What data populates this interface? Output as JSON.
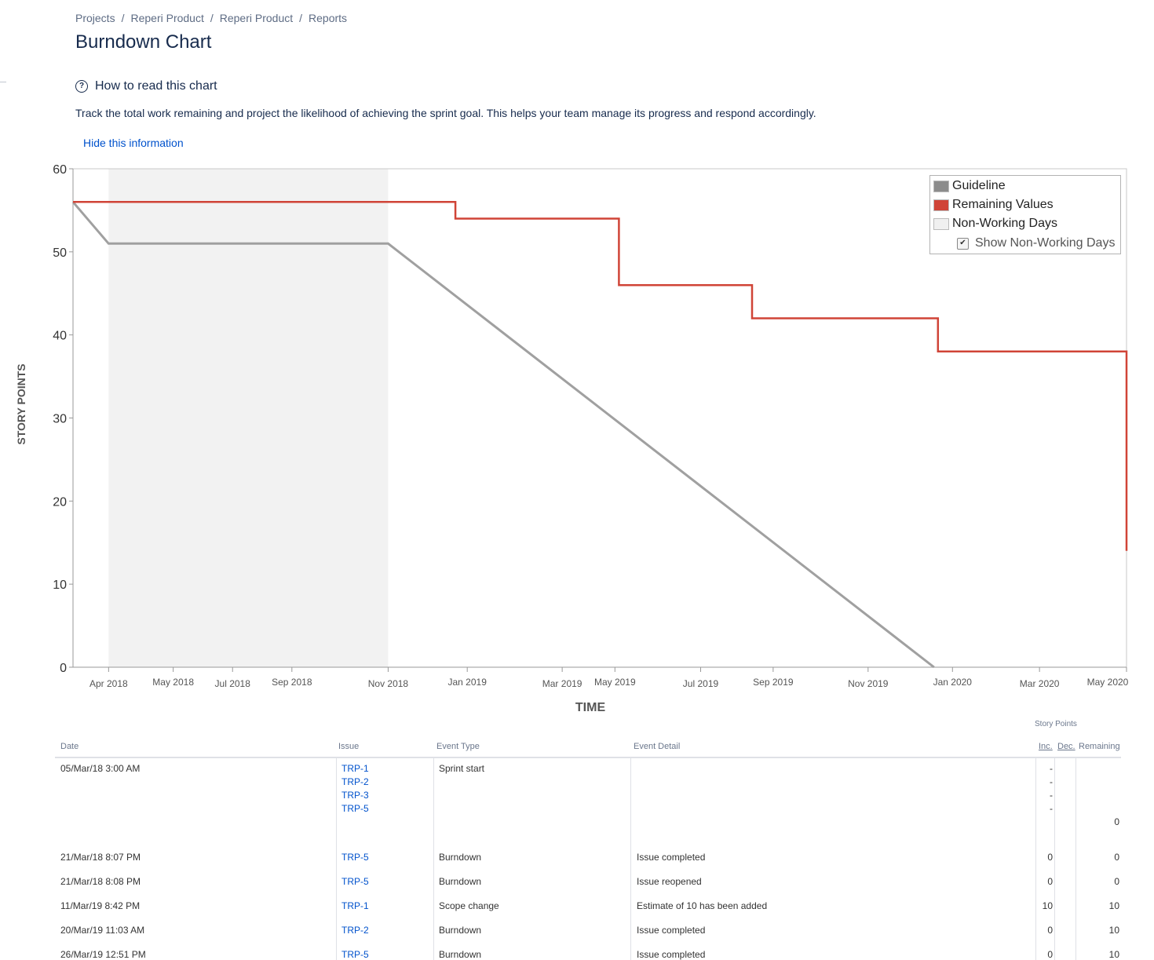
{
  "breadcrumb": [
    "Projects",
    "Reperi Product",
    "Reperi Product",
    "Reports"
  ],
  "page_title": "Burndown Chart",
  "help": {
    "title": "How to read this chart",
    "description": "Track the total work remaining and project the likelihood of achieving the sprint goal. This helps your team manage its progress and respond accordingly.",
    "hide_label": "Hide this information"
  },
  "chart_data": {
    "type": "line",
    "title": "",
    "xlabel": "TIME",
    "ylabel": "STORY POINTS",
    "ylim": [
      0,
      60
    ],
    "yticks": [
      0,
      10,
      20,
      30,
      40,
      50,
      60
    ],
    "xlim": [
      "2018-03-05",
      "2020-05-12"
    ],
    "xticks": [
      {
        "label": "Apr 2018",
        "date": "2018-04-01"
      },
      {
        "label": "May 2018",
        "date": "2018-05-20"
      },
      {
        "label": "Jul 2018",
        "date": "2018-07-04"
      },
      {
        "label": "Sep 2018",
        "date": "2018-08-18"
      },
      {
        "label": "Nov 2018",
        "date": "2018-10-30"
      },
      {
        "label": "Jan 2019",
        "date": "2018-12-29"
      },
      {
        "label": "Mar 2019",
        "date": "2019-03-11"
      },
      {
        "label": "May 2019",
        "date": "2019-04-20"
      },
      {
        "label": "Jul 2019",
        "date": "2019-06-24"
      },
      {
        "label": "Sep 2019",
        "date": "2019-08-18"
      },
      {
        "label": "Nov 2019",
        "date": "2019-10-29"
      },
      {
        "label": "Jan 2020",
        "date": "2020-01-01"
      },
      {
        "label": "Mar 2020",
        "date": "2020-03-07"
      },
      {
        "label": "May 2020",
        "date": "2020-05-12"
      }
    ],
    "non_working_periods": [
      [
        "2018-04-01",
        "2018-10-30"
      ]
    ],
    "series": [
      {
        "name": "Guideline",
        "color": "#a0a0a0",
        "step": false,
        "points": [
          [
            "2018-03-05",
            56
          ],
          [
            "2018-04-01",
            51
          ],
          [
            "2018-10-30",
            51
          ],
          [
            "2019-12-18",
            0
          ]
        ]
      },
      {
        "name": "Remaining Values",
        "color": "#d04437",
        "step": true,
        "points": [
          [
            "2018-03-05",
            56
          ],
          [
            "2018-12-20",
            54
          ],
          [
            "2019-04-23",
            46
          ],
          [
            "2019-08-02",
            42
          ],
          [
            "2019-12-21",
            38
          ],
          [
            "2020-05-12",
            30
          ],
          [
            "2020-05-12",
            14
          ]
        ]
      }
    ],
    "legend": {
      "position": "top-right",
      "items": [
        {
          "label": "Guideline",
          "color": "#8c8c8c"
        },
        {
          "label": "Remaining Values",
          "color": "#d04437"
        },
        {
          "label": "Non-Working Days",
          "color": "#f0f0f0"
        }
      ],
      "checkbox_label": "Show Non-Working Days",
      "checkbox_checked": true
    }
  },
  "table": {
    "group_header": "Story Points",
    "columns": [
      "Date",
      "Issue",
      "Event Type",
      "Event Detail",
      "Inc.",
      "Dec.",
      "Remaining"
    ],
    "rows": [
      {
        "date": "05/Mar/18 3:00 AM",
        "issues": [
          "TRP-1",
          "TRP-2",
          "TRP-3",
          "TRP-5"
        ],
        "event_type": "Sprint start",
        "detail": "",
        "inc": [
          "-",
          "-",
          "-",
          "-"
        ],
        "dec": "",
        "remaining": "0"
      },
      {
        "date": "21/Mar/18 8:07 PM",
        "issues": [
          "TRP-5"
        ],
        "event_type": "Burndown",
        "detail": "Issue completed",
        "inc": [
          "0"
        ],
        "dec": "",
        "remaining": "0"
      },
      {
        "date": "21/Mar/18 8:08 PM",
        "issues": [
          "TRP-5"
        ],
        "event_type": "Burndown",
        "detail": "Issue reopened",
        "inc": [
          "0"
        ],
        "dec": "",
        "remaining": "0"
      },
      {
        "date": "11/Mar/19 8:42 PM",
        "issues": [
          "TRP-1"
        ],
        "event_type": "Scope change",
        "detail": "Estimate of 10 has been added",
        "inc": [
          "10"
        ],
        "dec": "",
        "remaining": "10"
      },
      {
        "date": "20/Mar/19 11:03 AM",
        "issues": [
          "TRP-2"
        ],
        "event_type": "Burndown",
        "detail": "Issue completed",
        "inc": [
          "0"
        ],
        "dec": "",
        "remaining": "10"
      },
      {
        "date": "26/Mar/19 12:51 PM",
        "issues": [
          "TRP-5"
        ],
        "event_type": "Burndown",
        "detail": "Issue completed",
        "inc": [
          "0"
        ],
        "dec": "",
        "remaining": "10"
      }
    ]
  }
}
